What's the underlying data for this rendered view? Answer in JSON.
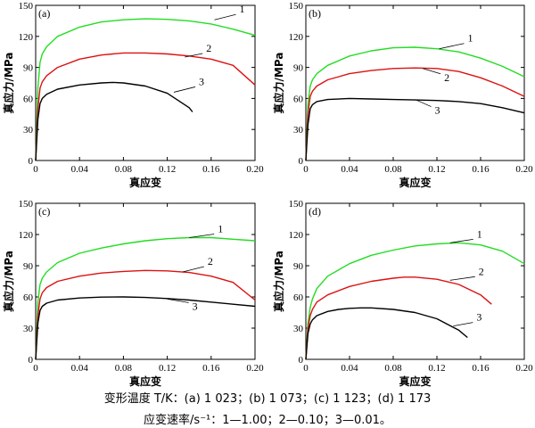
{
  "caption": {
    "line1": "变形温度 T/K：(a) 1 023；(b) 1 073；(c) 1 123；(d) 1 173",
    "line2": "应变速率/s⁻¹：1—1.00；2—0.10；3—0.01。"
  },
  "colors": {
    "1": "#22dd22",
    "2": "#dd1111",
    "3": "#000000"
  },
  "chart_data": [
    {
      "type": "line",
      "panel_label": "(a)",
      "xlabel": "真应变",
      "ylabel": "真应力/MPa",
      "xlim": [
        0,
        0.2
      ],
      "ylim": [
        0,
        150
      ],
      "xticks": [
        0,
        0.04,
        0.08,
        0.12,
        0.16,
        0.2
      ],
      "xtick_labels": [
        "0",
        "0.04",
        "0.08",
        "0.12",
        "0.16",
        "0.20"
      ],
      "yticks": [
        0,
        30,
        60,
        90,
        120,
        150
      ],
      "ytick_labels": [
        "0",
        "30",
        "60",
        "90",
        "120",
        "150"
      ],
      "series": [
        {
          "name": "1",
          "x": [
            0,
            0.002,
            0.004,
            0.006,
            0.01,
            0.02,
            0.04,
            0.06,
            0.08,
            0.1,
            0.12,
            0.14,
            0.16,
            0.18,
            0.2
          ],
          "y": [
            0,
            70,
            95,
            103,
            110,
            120,
            129,
            134,
            136,
            137,
            136.5,
            135,
            132,
            127,
            121
          ]
        },
        {
          "name": "2",
          "x": [
            0,
            0.002,
            0.004,
            0.006,
            0.01,
            0.02,
            0.04,
            0.06,
            0.08,
            0.1,
            0.12,
            0.14,
            0.16,
            0.18,
            0.2
          ],
          "y": [
            0,
            50,
            70,
            76,
            82,
            90,
            98,
            102,
            104,
            104,
            103,
            101,
            98,
            92,
            73
          ]
        },
        {
          "name": "3",
          "x": [
            0,
            0.002,
            0.004,
            0.006,
            0.01,
            0.02,
            0.04,
            0.06,
            0.07,
            0.08,
            0.1,
            0.12,
            0.13,
            0.14,
            0.143
          ],
          "y": [
            0,
            40,
            55,
            60,
            64,
            69,
            73,
            75,
            75.5,
            75,
            72,
            65,
            58,
            51,
            47
          ]
        }
      ],
      "annotations": [
        {
          "text": "1",
          "at_x": 0.163,
          "at_y": 136
        },
        {
          "text": "2",
          "at_x": 0.136,
          "at_y": 100
        },
        {
          "text": "3",
          "at_x": 0.126,
          "at_y": 66
        }
      ]
    },
    {
      "type": "line",
      "panel_label": "(b)",
      "xlabel": "真应变",
      "ylabel": "真应力/MPa",
      "xlim": [
        0,
        0.2
      ],
      "ylim": [
        0,
        150
      ],
      "xticks": [
        0,
        0.04,
        0.08,
        0.12,
        0.16,
        0.2
      ],
      "xtick_labels": [
        "0",
        "0.04",
        "0.08",
        "0.12",
        "0.16",
        "0.20"
      ],
      "yticks": [
        0,
        30,
        60,
        90,
        120,
        150
      ],
      "ytick_labels": [
        "0",
        "30",
        "60",
        "90",
        "120",
        "150"
      ],
      "series": [
        {
          "name": "1",
          "x": [
            0,
            0.002,
            0.004,
            0.006,
            0.01,
            0.02,
            0.04,
            0.06,
            0.08,
            0.1,
            0.12,
            0.14,
            0.16,
            0.18,
            0.2
          ],
          "y": [
            0,
            55,
            72,
            78,
            84,
            92,
            101,
            106,
            109,
            109.5,
            108,
            105,
            99,
            91,
            81
          ]
        },
        {
          "name": "2",
          "x": [
            0,
            0.002,
            0.004,
            0.006,
            0.01,
            0.02,
            0.04,
            0.06,
            0.08,
            0.1,
            0.12,
            0.14,
            0.16,
            0.18,
            0.2
          ],
          "y": [
            0,
            45,
            62,
            67,
            72,
            78,
            84,
            87,
            89,
            89.5,
            89,
            86,
            80,
            72,
            62
          ]
        },
        {
          "name": "3",
          "x": [
            0,
            0.002,
            0.004,
            0.006,
            0.01,
            0.02,
            0.04,
            0.06,
            0.08,
            0.1,
            0.12,
            0.14,
            0.16,
            0.18,
            0.2
          ],
          "y": [
            0,
            35,
            50,
            54,
            57,
            59,
            60,
            59.5,
            59,
            58.5,
            58,
            57,
            55,
            51,
            46
          ]
        }
      ],
      "annotations": [
        {
          "text": "1",
          "at_x": 0.122,
          "at_y": 108
        },
        {
          "text": "2",
          "at_x": 0.107,
          "at_y": 89
        },
        {
          "text": "3",
          "at_x": 0.1,
          "at_y": 59
        }
      ]
    },
    {
      "type": "line",
      "panel_label": "(c)",
      "xlabel": "真应变",
      "ylabel": "真应力/MPa",
      "xlim": [
        0,
        0.2
      ],
      "ylim": [
        0,
        150
      ],
      "xticks": [
        0,
        0.04,
        0.08,
        0.12,
        0.16,
        0.2
      ],
      "xtick_labels": [
        "0",
        "0.04",
        "0.08",
        "0.12",
        "0.16",
        "0.20"
      ],
      "yticks": [
        0,
        30,
        60,
        90,
        120,
        150
      ],
      "ytick_labels": [
        "0",
        "30",
        "60",
        "90",
        "120",
        "150"
      ],
      "series": [
        {
          "name": "1",
          "x": [
            0,
            0.002,
            0.004,
            0.006,
            0.01,
            0.02,
            0.04,
            0.06,
            0.08,
            0.1,
            0.12,
            0.14,
            0.16,
            0.18,
            0.2
          ],
          "y": [
            0,
            55,
            72,
            78,
            84,
            93,
            102,
            107,
            111,
            114,
            116,
            117,
            117,
            115.5,
            114
          ]
        },
        {
          "name": "2",
          "x": [
            0,
            0.002,
            0.004,
            0.006,
            0.01,
            0.02,
            0.04,
            0.06,
            0.08,
            0.1,
            0.12,
            0.14,
            0.16,
            0.18,
            0.2
          ],
          "y": [
            0,
            42,
            58,
            64,
            69,
            75,
            80,
            83,
            84.5,
            85.5,
            85,
            83.5,
            80,
            74,
            57
          ]
        },
        {
          "name": "3",
          "x": [
            0,
            0.002,
            0.004,
            0.006,
            0.01,
            0.02,
            0.04,
            0.06,
            0.08,
            0.1,
            0.12,
            0.14,
            0.16,
            0.18,
            0.2
          ],
          "y": [
            0,
            35,
            47,
            51,
            54,
            57,
            59,
            59.8,
            60,
            59.5,
            58.5,
            57,
            55,
            53,
            51
          ]
        }
      ],
      "annotations": [
        {
          "text": "1",
          "at_x": 0.14,
          "at_y": 117
        },
        {
          "text": "2",
          "at_x": 0.134,
          "at_y": 84
        },
        {
          "text": "3",
          "at_x": 0.12,
          "at_y": 58
        }
      ]
    },
    {
      "type": "line",
      "panel_label": "(d)",
      "xlabel": "真应变",
      "ylabel": "真应力/MPa",
      "xlim": [
        0,
        0.2
      ],
      "ylim": [
        0,
        150
      ],
      "xticks": [
        0,
        0.04,
        0.08,
        0.12,
        0.16,
        0.2
      ],
      "xtick_labels": [
        "0",
        "0.04",
        "0.08",
        "0.12",
        "0.16",
        "0.20"
      ],
      "yticks": [
        0,
        30,
        60,
        90,
        120,
        150
      ],
      "ytick_labels": [
        "0",
        "30",
        "60",
        "90",
        "120",
        "150"
      ],
      "series": [
        {
          "name": "1",
          "x": [
            0,
            0.002,
            0.004,
            0.006,
            0.01,
            0.02,
            0.04,
            0.06,
            0.08,
            0.1,
            0.12,
            0.14,
            0.16,
            0.18,
            0.2
          ],
          "y": [
            0,
            35,
            50,
            58,
            68,
            80,
            92,
            100,
            105,
            109,
            111,
            112,
            110,
            104,
            92
          ]
        },
        {
          "name": "2",
          "x": [
            0,
            0.002,
            0.004,
            0.006,
            0.01,
            0.02,
            0.04,
            0.06,
            0.08,
            0.09,
            0.1,
            0.12,
            0.14,
            0.16,
            0.17
          ],
          "y": [
            0,
            30,
            42,
            48,
            55,
            62,
            70,
            75,
            78,
            79,
            79,
            77,
            72,
            62,
            53
          ]
        },
        {
          "name": "3",
          "x": [
            0,
            0.002,
            0.004,
            0.006,
            0.01,
            0.02,
            0.03,
            0.04,
            0.05,
            0.06,
            0.08,
            0.1,
            0.12,
            0.14,
            0.148
          ],
          "y": [
            0,
            25,
            34,
            38,
            42,
            46,
            48,
            49,
            49.5,
            49.5,
            48,
            45,
            39,
            28,
            21
          ]
        }
      ],
      "annotations": [
        {
          "text": "1",
          "at_x": 0.132,
          "at_y": 112
        },
        {
          "text": "2",
          "at_x": 0.132,
          "at_y": 76
        },
        {
          "text": "3",
          "at_x": 0.135,
          "at_y": 32
        }
      ]
    }
  ]
}
